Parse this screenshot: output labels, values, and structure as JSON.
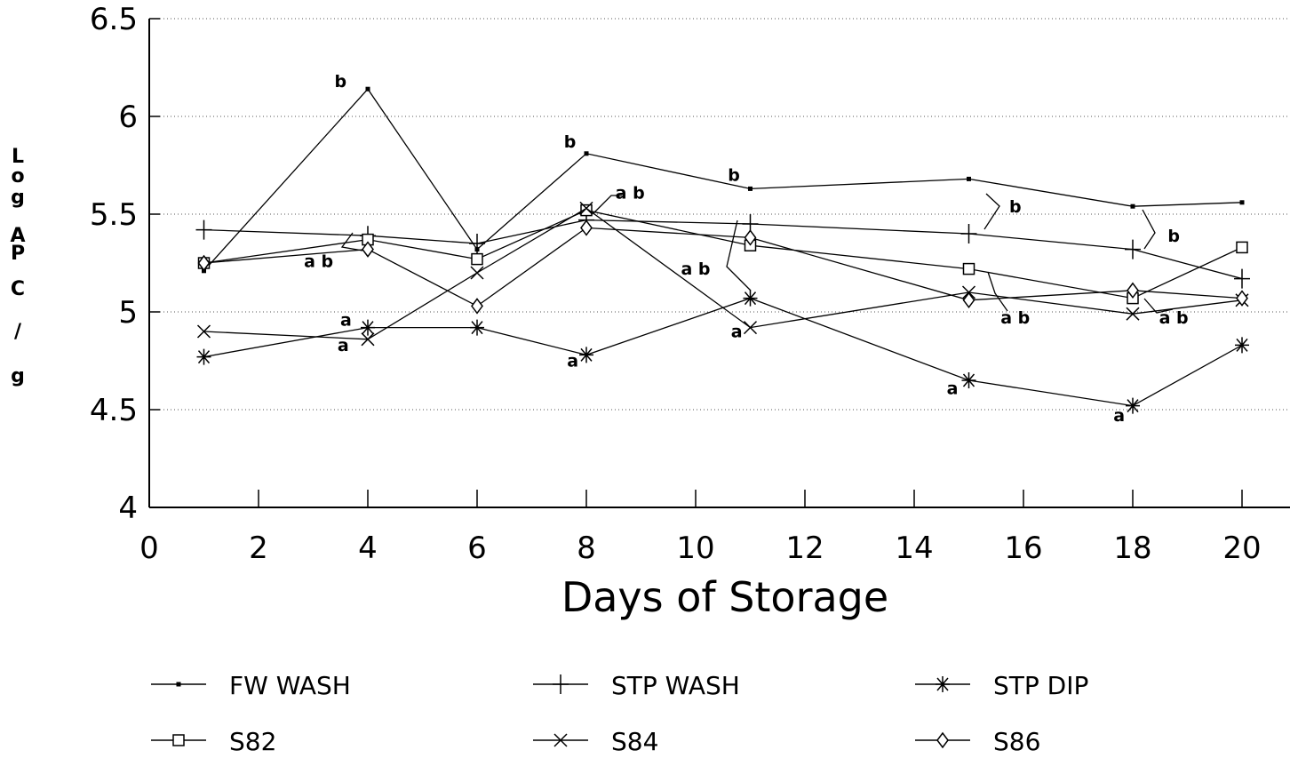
{
  "chart_data": {
    "type": "line",
    "title": "",
    "xlabel": "Days of Storage",
    "ylabel": "Log APC / g",
    "ylabel_lines": [
      "L",
      "o",
      "g",
      "",
      "A",
      "P",
      "C",
      "",
      "/",
      "",
      "g"
    ],
    "xlim": [
      0,
      20
    ],
    "ylim": [
      4,
      6.5
    ],
    "xticks": [
      "0",
      "2",
      "4",
      "6",
      "8",
      "10",
      "12",
      "14",
      "16",
      "18",
      "20"
    ],
    "yticks": [
      "4",
      "4.5",
      "5",
      "5.5",
      "6",
      "6.5"
    ],
    "grid": "horizontal dotted",
    "legend_position": "bottom",
    "series": [
      {
        "name": "FW WASH",
        "marker": "square-dot",
        "x": [
          1,
          4,
          6,
          8,
          11,
          15,
          18,
          20
        ],
        "y": [
          5.21,
          6.14,
          5.32,
          5.81,
          5.63,
          5.68,
          5.54,
          5.56
        ]
      },
      {
        "name": "STP WASH",
        "marker": "plus",
        "x": [
          1,
          4,
          6,
          8,
          11,
          15,
          18,
          20
        ],
        "y": [
          5.42,
          5.39,
          5.35,
          5.47,
          5.45,
          5.4,
          5.32,
          5.17
        ]
      },
      {
        "name": "STP DIP",
        "marker": "asterisk",
        "x": [
          1,
          4,
          6,
          8,
          11,
          15,
          18,
          20
        ],
        "y": [
          4.77,
          4.92,
          4.92,
          4.78,
          5.07,
          4.65,
          4.52,
          4.83
        ]
      },
      {
        "name": "S82",
        "marker": "square",
        "x": [
          1,
          4,
          6,
          8,
          11,
          15,
          18,
          20
        ],
        "y": [
          5.25,
          5.37,
          5.27,
          5.52,
          5.34,
          5.22,
          5.07,
          5.33
        ]
      },
      {
        "name": "S84",
        "marker": "x",
        "x": [
          1,
          4,
          6,
          8,
          11,
          15,
          18,
          20
        ],
        "y": [
          4.9,
          4.86,
          5.2,
          5.53,
          4.92,
          5.1,
          4.99,
          5.06
        ]
      },
      {
        "name": "S86",
        "marker": "diamond",
        "x": [
          1,
          4,
          6,
          8,
          11,
          15,
          18,
          20
        ],
        "y": [
          5.25,
          5.32,
          5.03,
          5.43,
          5.38,
          5.06,
          5.11,
          5.07
        ]
      }
    ],
    "annotations": [
      {
        "text": "b",
        "x": 3.5,
        "y": 6.15
      },
      {
        "text": "b",
        "x": 7.7,
        "y": 5.84
      },
      {
        "text": "b",
        "x": 10.7,
        "y": 5.67
      },
      {
        "text": "b",
        "x": 15.85,
        "y": 5.51
      },
      {
        "text": "b",
        "x": 18.75,
        "y": 5.36
      },
      {
        "text": "a b",
        "x": 8.8,
        "y": 5.58
      },
      {
        "text": "a b",
        "x": 3.1,
        "y": 5.23
      },
      {
        "text": "a b",
        "x": 10.0,
        "y": 5.19
      },
      {
        "text": "a b",
        "x": 15.85,
        "y": 4.94
      },
      {
        "text": "a b",
        "x": 18.75,
        "y": 4.94
      },
      {
        "text": "a",
        "x": 3.6,
        "y": 4.93
      },
      {
        "text": "a",
        "x": 3.55,
        "y": 4.8
      },
      {
        "text": "a",
        "x": 7.75,
        "y": 4.72
      },
      {
        "text": "a",
        "x": 10.75,
        "y": 4.87
      },
      {
        "text": "a",
        "x": 14.7,
        "y": 4.58
      },
      {
        "text": "a",
        "x": 17.75,
        "y": 4.44
      }
    ]
  }
}
